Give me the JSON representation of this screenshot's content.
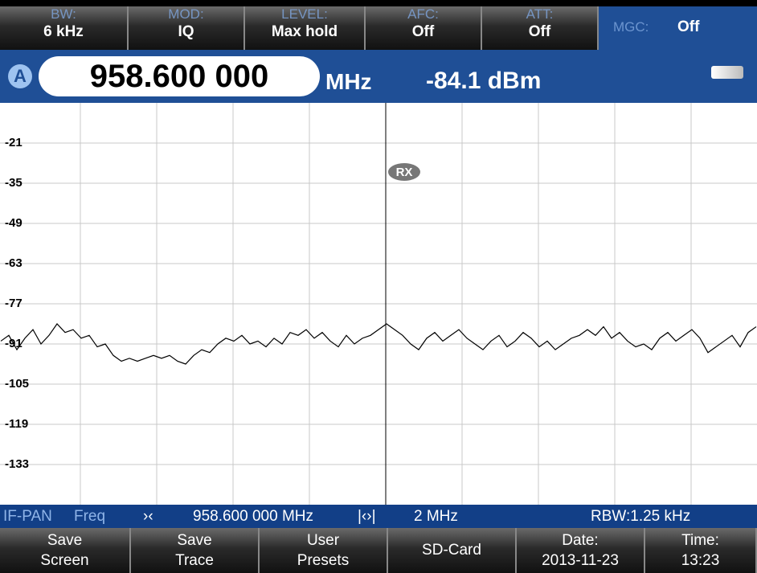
{
  "top_bar": {
    "buttons": [
      {
        "label": "BW:",
        "value": "6 kHz"
      },
      {
        "label": "MOD:",
        "value": "IQ"
      },
      {
        "label": "LEVEL:",
        "value": "Max hold"
      },
      {
        "label": "AFC:",
        "value": "Off"
      },
      {
        "label": "ATT:",
        "value": "Off"
      },
      {
        "label": "MGC:",
        "value": "Off"
      }
    ]
  },
  "header": {
    "marker": "A",
    "frequency": "958.600 000",
    "unit": "MHz",
    "level": "-84.1 dBm"
  },
  "chart_data": {
    "type": "line",
    "annotation": "RX",
    "ylim": [
      -147,
      -7
    ],
    "yticks": [
      -21,
      -35,
      -49,
      -63,
      -77,
      -91,
      -105,
      -119,
      -133
    ],
    "grid": true,
    "color": "#000000",
    "values": [
      -90,
      -88,
      -93,
      -89,
      -86,
      -91,
      -88,
      -84,
      -87,
      -86,
      -89,
      -88,
      -92,
      -91,
      -95,
      -97,
      -96,
      -97,
      -96,
      -95,
      -96,
      -95,
      -97,
      -98,
      -95,
      -93,
      -94,
      -91,
      -89,
      -90,
      -88,
      -91,
      -90,
      -92,
      -89,
      -91,
      -87,
      -88,
      -86,
      -89,
      -87,
      -90,
      -92,
      -88,
      -91,
      -89,
      -88,
      -86,
      -84,
      -86,
      -88,
      -91,
      -93,
      -89,
      -87,
      -90,
      -88,
      -86,
      -89,
      -91,
      -93,
      -90,
      -88,
      -92,
      -90,
      -87,
      -89,
      -92,
      -90,
      -93,
      -91,
      -89,
      -88,
      -86,
      -88,
      -85,
      -89,
      -87,
      -90,
      -92,
      -91,
      -93,
      -89,
      -87,
      -90,
      -88,
      -86,
      -89,
      -94,
      -92,
      -90,
      -88,
      -92,
      -87,
      -85
    ]
  },
  "status_bar": {
    "mode": "IF-PAN",
    "mode_sub": "Freq",
    "center_icon": "›‹",
    "center": "958.600 000 MHz",
    "span_icon": "|‹›|",
    "span": "2 MHz",
    "rbw": "RBW:1.25 kHz"
  },
  "softkeys": [
    {
      "lines": [
        "Save",
        "Screen"
      ]
    },
    {
      "lines": [
        "Save",
        "Trace"
      ]
    },
    {
      "lines": [
        "User",
        "Presets"
      ]
    },
    {
      "lines": [
        "SD-Card"
      ]
    },
    {
      "lines": [
        "Date:",
        "2013-11-23"
      ]
    },
    {
      "lines": [
        "Time:",
        "13:23"
      ]
    }
  ]
}
